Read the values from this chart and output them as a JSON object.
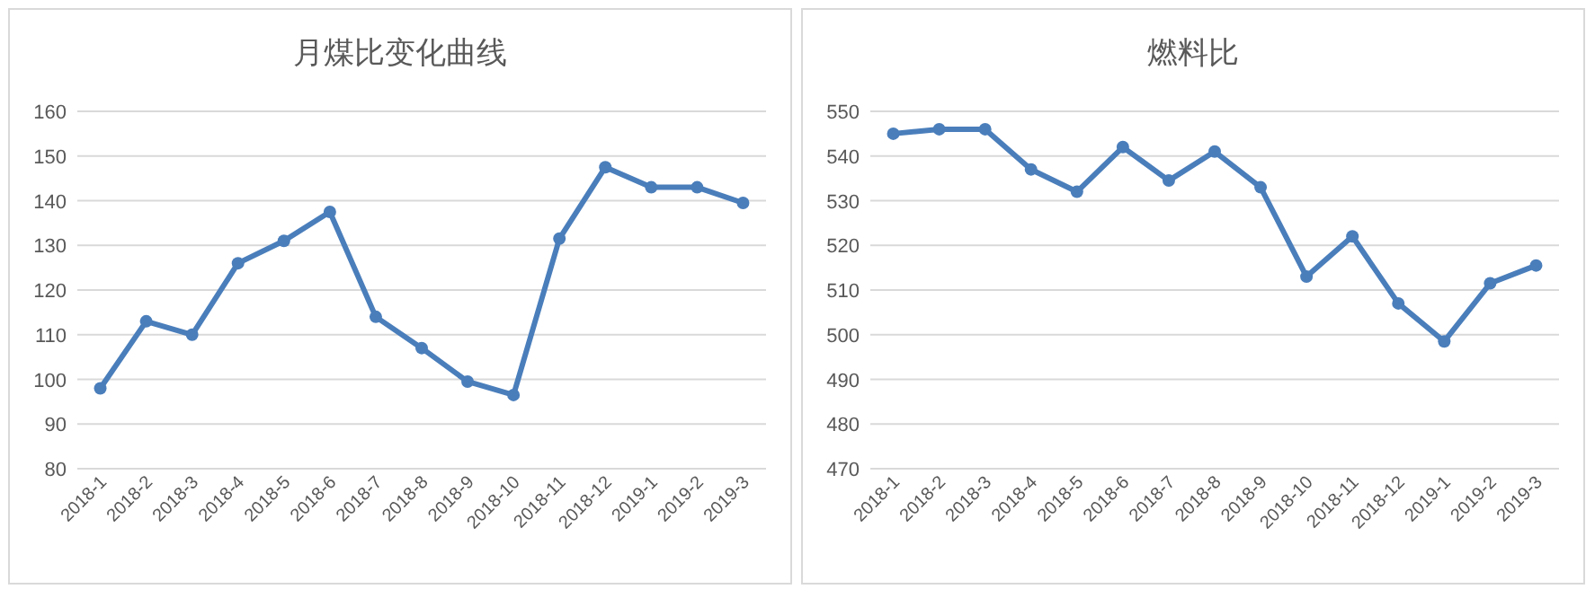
{
  "chart_data": [
    {
      "type": "line",
      "title": "月煤比变化曲线",
      "categories": [
        "2018-1",
        "2018-2",
        "2018-3",
        "2018-4",
        "2018-5",
        "2018-6",
        "2018-7",
        "2018-8",
        "2018-9",
        "2018-10",
        "2018-11",
        "2018-12",
        "2019-1",
        "2019-2",
        "2019-3"
      ],
      "values": [
        98,
        113,
        110,
        126,
        131,
        137.5,
        114,
        107,
        99.5,
        96.5,
        131.5,
        147.5,
        143,
        143,
        139.5
      ],
      "color": "#4a7ebb",
      "ylim": [
        80,
        160
      ],
      "yticks": [
        80,
        90,
        100,
        110,
        120,
        130,
        140,
        150,
        160
      ],
      "grid": "y",
      "marker": "circle"
    },
    {
      "type": "line",
      "title": "燃料比",
      "categories": [
        "2018-1",
        "2018-2",
        "2018-3",
        "2018-4",
        "2018-5",
        "2018-6",
        "2018-7",
        "2018-8",
        "2018-9",
        "2018-10",
        "2018-11",
        "2018-12",
        "2019-1",
        "2019-2",
        "2019-3"
      ],
      "values": [
        545,
        546,
        546,
        537,
        532,
        542,
        534.5,
        541,
        533,
        513,
        522,
        507,
        498.5,
        511.5,
        515.5
      ],
      "color": "#4a7ebb",
      "ylim": [
        470,
        550
      ],
      "yticks": [
        470,
        480,
        490,
        500,
        510,
        520,
        530,
        540,
        550
      ],
      "grid": "y",
      "marker": "circle"
    }
  ]
}
